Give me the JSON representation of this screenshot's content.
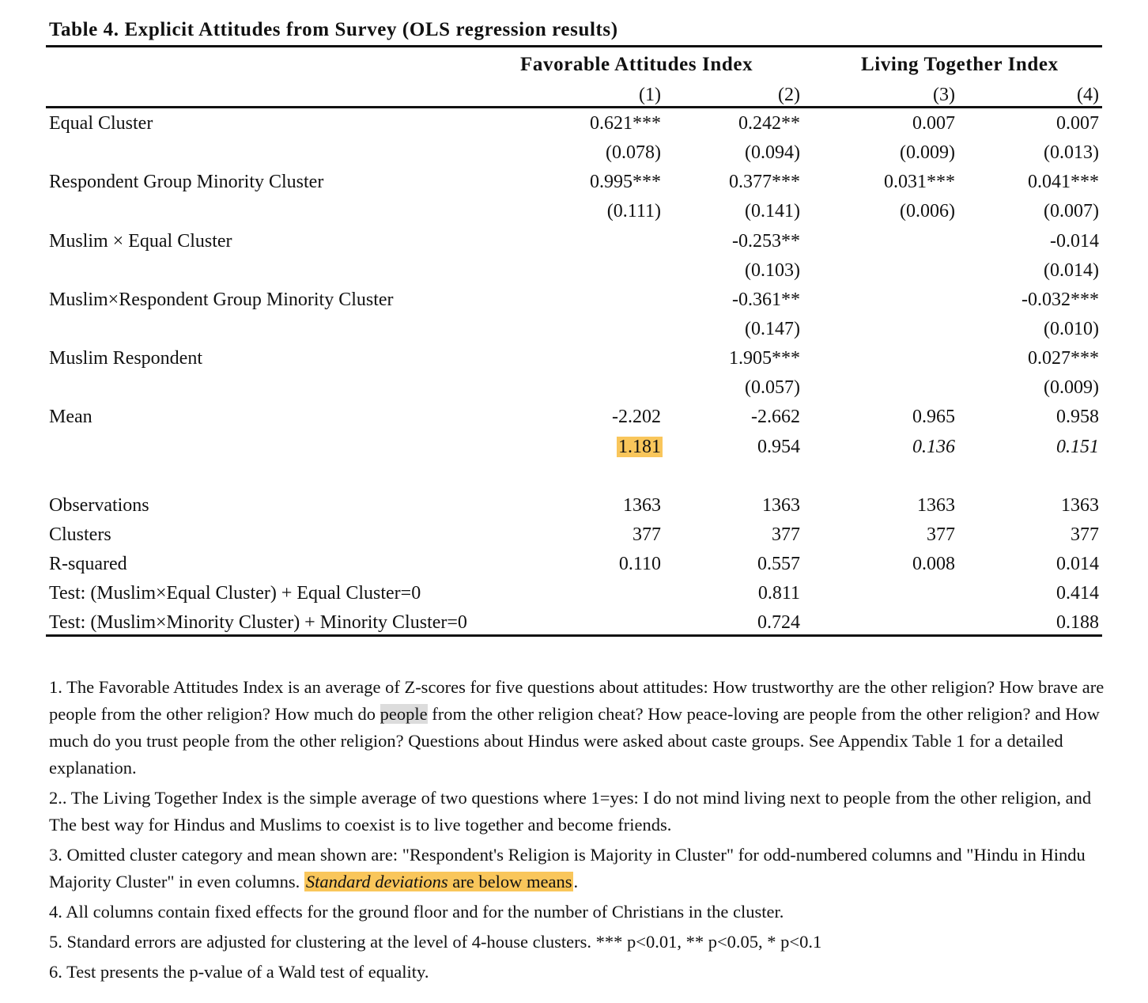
{
  "title": "Table 4. Explicit Attitudes from Survey (OLS regression results)",
  "headers": {
    "group1": "Favorable Attitudes Index",
    "group2": "Living Together Index",
    "cols": [
      "(1)",
      "(2)",
      "(3)",
      "(4)"
    ]
  },
  "rows": [
    {
      "label": "Equal Cluster",
      "c1": "0.621***",
      "c2": "0.242**",
      "c3": "0.007",
      "c4": "0.007"
    },
    {
      "label": "",
      "c1": "(0.078)",
      "c2": "(0.094)",
      "c3": "(0.009)",
      "c4": "(0.013)"
    },
    {
      "label": "Respondent Group Minority Cluster",
      "c1": "0.995***",
      "c2": "0.377***",
      "c3": "0.031***",
      "c4": "0.041***"
    },
    {
      "label": "",
      "c1": "(0.111)",
      "c2": "(0.141)",
      "c3": "(0.006)",
      "c4": "(0.007)"
    },
    {
      "label": "Muslim × Equal Cluster",
      "c1": "",
      "c2": "-0.253**",
      "c3": "",
      "c4": "-0.014"
    },
    {
      "label": "",
      "c1": "",
      "c2": "(0.103)",
      "c3": "",
      "c4": "(0.014)"
    },
    {
      "label": "Muslim×Respondent Group Minority Cluster",
      "c1": "",
      "c2": "-0.361**",
      "c3": "",
      "c4": "-0.032***"
    },
    {
      "label": "",
      "c1": "",
      "c2": "(0.147)",
      "c3": "",
      "c4": "(0.010)"
    },
    {
      "label": "Muslim Respondent",
      "c1": "",
      "c2": "1.905***",
      "c3": "",
      "c4": "0.027***"
    },
    {
      "label": "",
      "c1": "",
      "c2": "(0.057)",
      "c3": "",
      "c4": "(0.009)"
    },
    {
      "label": "Mean",
      "c1": "-2.202",
      "c2": "-2.662",
      "c3": "0.965",
      "c4": "0.958"
    },
    {
      "label": "",
      "c1": "1.181",
      "c2": "0.954",
      "c3": "0.136",
      "c4": "0.151"
    }
  ],
  "stats": [
    {
      "label": "Observations",
      "c1": "1363",
      "c2": "1363",
      "c3": "1363",
      "c4": "1363"
    },
    {
      "label": "Clusters",
      "c1": "377",
      "c2": "377",
      "c3": "377",
      "c4": "377"
    },
    {
      "label": "R-squared",
      "c1": "0.110",
      "c2": "0.557",
      "c3": "0.008",
      "c4": "0.014"
    },
    {
      "label": "Test: (Muslim×Equal Cluster) + Equal Cluster=0",
      "c1": "",
      "c2": "0.811",
      "c3": "",
      "c4": "0.414"
    },
    {
      "label": "Test: (Muslim×Minority Cluster) + Minority Cluster=0",
      "c1": "",
      "c2": "0.724",
      "c3": "",
      "c4": "0.188"
    }
  ],
  "notes": {
    "n1_a": "1. The Favorable Attitudes Index is an average of Z-scores for five questions about attitudes: How trustworthy are the other religion? How brave are people from the other religion? How much do ",
    "n1_hl": "people",
    "n1_b": " from the other religion cheat? How peace-loving are people from the other religion? and How much do you trust people from the other religion? Questions about Hindus were asked about caste groups.  See Appendix Table 1 for a detailed explanation.",
    "n2": "2.. The Living Together Index is the simple average of two questions where 1=yes: I do not mind living next to people from the other religion, and The best way for Hindus and Muslims to coexist is to live together and become friends.",
    "n3_a": "3. Omitted cluster category and mean shown are: \"Respondent's Religion is Majority in Cluster\" for odd-numbered columns and \"Hindu in Hindu Majority Cluster\" in even columns. ",
    "n3_hl_italic": "Standard deviations",
    "n3_hl_rest": " are below means",
    "n3_end": ".",
    "n4": "4. All columns contain fixed effects for the ground floor and for the number of Christians in the cluster.",
    "n5": "5. Standard errors are adjusted for clustering at the level of 4-house clusters.  *** p<0.01, ** p<0.05, * p<0.1",
    "n6": "6. Test presents the p-value of a Wald test of equality."
  },
  "colors": {
    "highlight": "#f9c65b",
    "highlight_grey": "#dcdcdc"
  }
}
